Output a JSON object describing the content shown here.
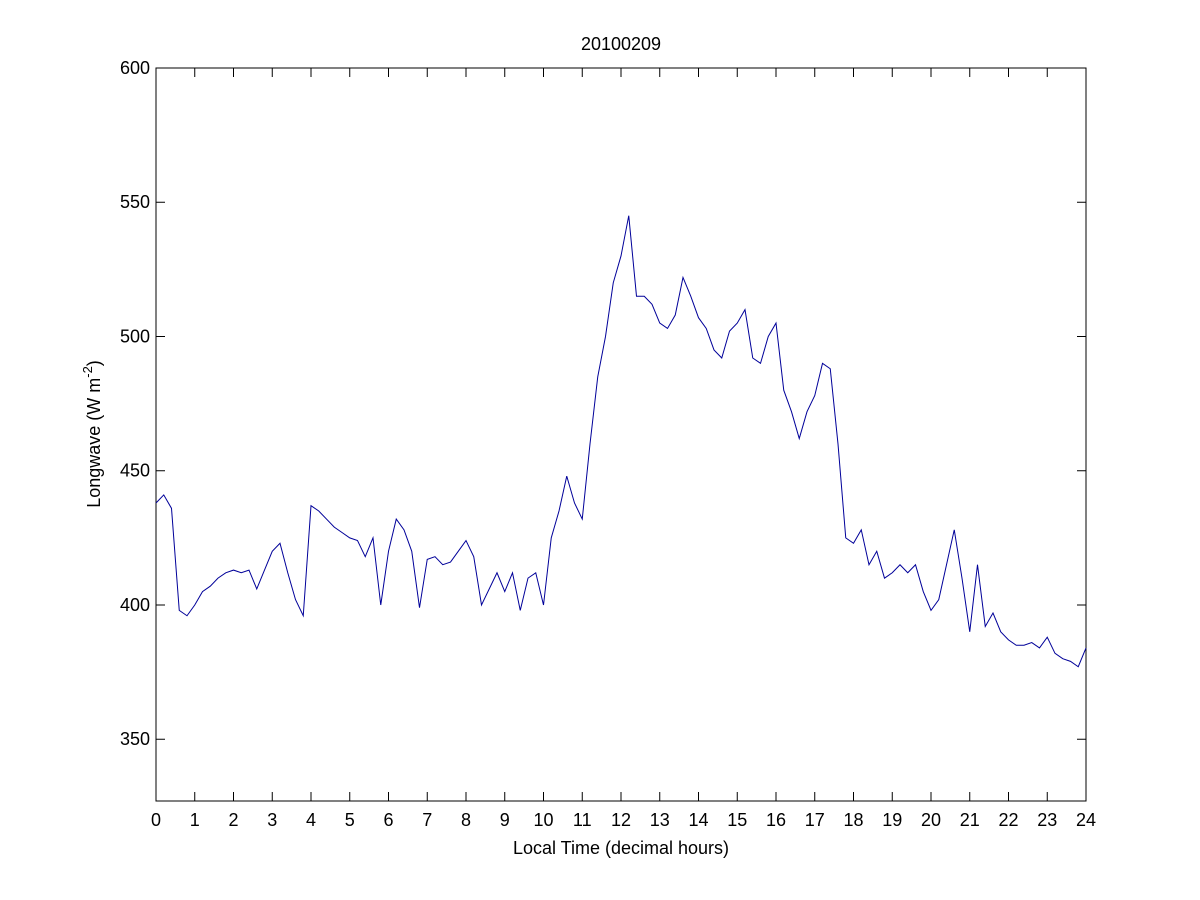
{
  "chart_data": {
    "type": "line",
    "title": "20100209",
    "xlabel": "Local Time (decimal hours)",
    "ylabel": {
      "text": "Longwave (W m",
      "superscript": "-2",
      "end": ")"
    },
    "x": [
      0,
      0.2,
      0.4,
      0.6,
      0.8,
      1,
      1.2,
      1.4,
      1.6,
      1.8,
      2,
      2.2,
      2.4,
      2.6,
      2.8,
      3,
      3.2,
      3.4,
      3.6,
      3.8,
      4,
      4.2,
      4.4,
      4.6,
      4.8,
      5,
      5.2,
      5.4,
      5.6,
      5.8,
      6,
      6.2,
      6.4,
      6.6,
      6.8,
      7,
      7.2,
      7.4,
      7.6,
      7.8,
      8,
      8.2,
      8.4,
      8.6,
      8.8,
      9,
      9.2,
      9.4,
      9.6,
      9.8,
      10,
      10.2,
      10.4,
      10.6,
      10.8,
      11,
      11.2,
      11.4,
      11.6,
      11.8,
      12,
      12.2,
      12.4,
      12.6,
      12.8,
      13,
      13.2,
      13.4,
      13.6,
      13.8,
      14,
      14.2,
      14.4,
      14.6,
      14.8,
      15,
      15.2,
      15.4,
      15.6,
      15.8,
      16,
      16.2,
      16.4,
      16.6,
      16.8,
      17,
      17.2,
      17.4,
      17.6,
      17.8,
      18,
      18.2,
      18.4,
      18.6,
      18.8,
      19,
      19.2,
      19.4,
      19.6,
      19.8,
      20,
      20.2,
      20.4,
      20.6,
      20.8,
      21,
      21.2,
      21.4,
      21.6,
      21.8,
      22,
      22.2,
      22.4,
      22.6,
      22.8,
      23,
      23.2,
      23.4,
      23.6,
      23.8,
      24
    ],
    "series": [
      {
        "color": "#000099",
        "values": [
          438,
          441,
          436,
          398,
          396,
          400,
          405,
          407,
          410,
          412,
          413,
          412,
          413,
          406,
          413,
          420,
          423,
          412,
          402,
          396,
          437,
          435,
          432,
          429,
          427,
          425,
          424,
          418,
          425,
          400,
          420,
          432,
          428,
          420,
          399,
          417,
          418,
          415,
          416,
          420,
          424,
          418,
          400,
          406,
          412,
          405,
          412,
          398,
          410,
          412,
          400,
          425,
          435,
          448,
          438,
          432,
          460,
          485,
          500,
          520,
          530,
          545,
          515,
          515,
          512,
          505,
          503,
          508,
          522,
          515,
          507,
          503,
          495,
          492,
          502,
          505,
          510,
          492,
          490,
          500,
          505,
          480,
          472,
          462,
          472,
          478,
          490,
          488,
          460,
          425,
          423,
          428,
          415,
          420,
          410,
          412,
          415,
          412,
          415,
          405,
          398,
          402,
          415,
          428,
          410,
          390,
          415,
          392,
          397,
          390,
          387,
          385,
          385,
          386,
          384,
          388,
          382,
          380,
          379,
          377,
          384
        ]
      }
    ],
    "xlim": [
      0,
      24
    ],
    "xticks": [
      0,
      1,
      2,
      3,
      4,
      5,
      6,
      7,
      8,
      9,
      10,
      11,
      12,
      13,
      14,
      15,
      16,
      17,
      18,
      19,
      20,
      21,
      22,
      23,
      24
    ],
    "ylim": [
      327,
      600
    ],
    "yticks": [
      350,
      400,
      450,
      500,
      550,
      600
    ],
    "grid": false
  }
}
